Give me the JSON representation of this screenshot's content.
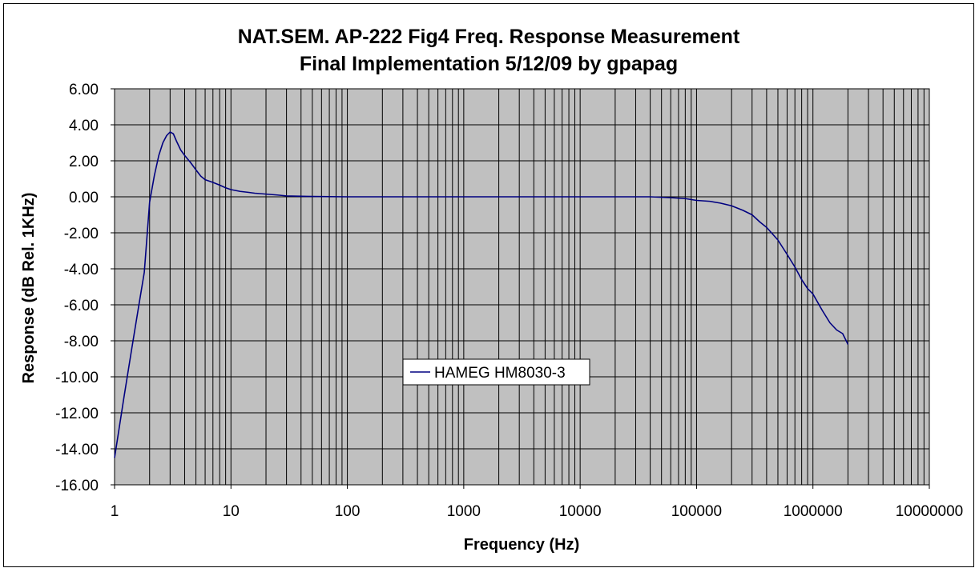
{
  "chart_data": {
    "type": "line",
    "title": "NAT.SEM. AP-222 Fig4 Freq. Response Measurement",
    "subtitle": "Final Implementation 5/12/09 by gpapag",
    "xlabel": "Frequency (Hz)",
    "ylabel": "Response (dB Rel. 1KHz)",
    "x_scale": "log",
    "xlim": [
      1,
      10000000
    ],
    "ylim": [
      -16,
      6
    ],
    "x_tick_labels": [
      "1",
      "10",
      "100",
      "1000",
      "10000",
      "100000",
      "1000000",
      "10000000"
    ],
    "y_tick_labels": [
      "6.00",
      "4.00",
      "2.00",
      "0.00",
      "-2.00",
      "-4.00",
      "-6.00",
      "-8.00",
      "-10.00",
      "-12.00",
      "-14.00",
      "-16.00"
    ],
    "y_ticks": [
      6,
      4,
      2,
      0,
      -2,
      -4,
      -6,
      -8,
      -10,
      -12,
      -14,
      -16
    ],
    "grid": true,
    "plot_background": "#c0c0c0",
    "legend_position": "center",
    "series": [
      {
        "name": "HAMEG HM8030-3",
        "color": "#000080",
        "x": [
          1,
          1.2,
          1.4,
          1.6,
          1.8,
          2,
          2.2,
          2.4,
          2.6,
          2.8,
          3,
          3.2,
          3.4,
          3.7,
          4,
          4.5,
          5,
          5.5,
          6,
          7,
          8,
          9,
          10,
          12,
          14,
          16,
          20,
          25,
          30,
          40,
          50,
          100,
          1000,
          10000,
          40000,
          60000,
          80000,
          100000,
          130000,
          160000,
          200000,
          250000,
          300000,
          350000,
          400000,
          500000,
          600000,
          700000,
          800000,
          900000,
          1000000,
          1200000,
          1400000,
          1600000,
          1800000,
          2000000
        ],
        "y": [
          -14.5,
          -11.2,
          -8.5,
          -6.2,
          -4.2,
          -0.3,
          1.2,
          2.3,
          3.0,
          3.4,
          3.6,
          3.5,
          3.1,
          2.6,
          2.3,
          1.9,
          1.5,
          1.15,
          0.95,
          0.8,
          0.65,
          0.5,
          0.4,
          0.3,
          0.25,
          0.2,
          0.15,
          0.1,
          0.05,
          0.03,
          0.02,
          0.0,
          0.0,
          0.0,
          0.0,
          -0.05,
          -0.1,
          -0.2,
          -0.25,
          -0.35,
          -0.5,
          -0.75,
          -1.0,
          -1.4,
          -1.7,
          -2.4,
          -3.2,
          -3.9,
          -4.6,
          -5.1,
          -5.4,
          -6.3,
          -7.0,
          -7.4,
          -7.6,
          -8.2
        ]
      }
    ]
  }
}
